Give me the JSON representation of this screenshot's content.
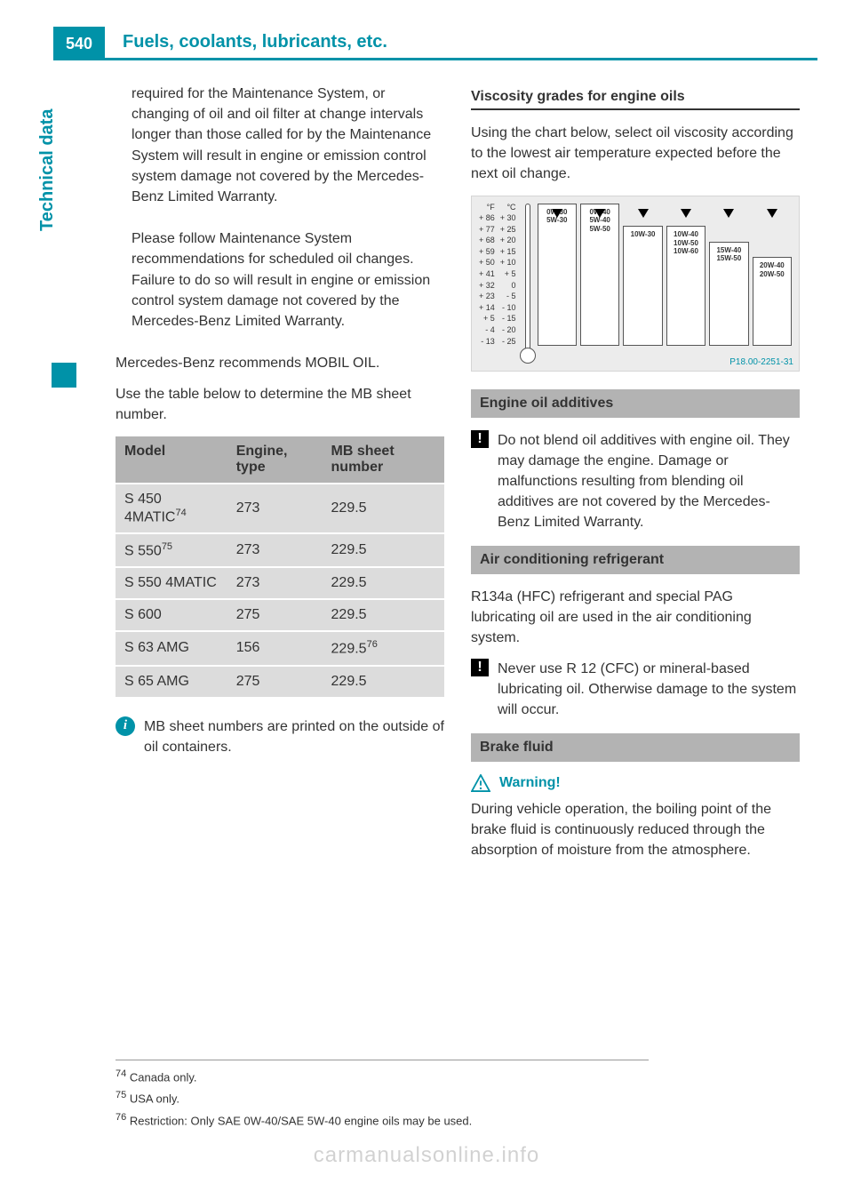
{
  "page_number": "540",
  "header_title": "Fuels, coolants, lubricants, etc.",
  "side_tab": "Technical data",
  "left": {
    "para1": "required for the Maintenance System, or changing of oil and oil filter at change intervals longer than those called for by the Maintenance System will result in engine or emission control system damage not covered by the Mercedes-Benz Limited Warranty.",
    "para2": "Please follow Maintenance System recommendations for scheduled oil changes. Failure to do so will result in engine or emission control system damage not covered by the Mercedes-Benz Limited Warranty.",
    "para3": "Mercedes-Benz recommends MOBIL OIL.",
    "para4": "Use the table below to determine the MB sheet number.",
    "table": {
      "headers": [
        "Model",
        "Engine, type",
        "MB sheet number"
      ],
      "rows": [
        {
          "model": "S 450 4MATIC",
          "sup": "74",
          "engine": "273",
          "sheet": "229.5",
          "sheet_sup": ""
        },
        {
          "model": "S 550",
          "sup": "75",
          "engine": "273",
          "sheet": "229.5",
          "sheet_sup": ""
        },
        {
          "model": "S 550 4MATIC",
          "sup": "",
          "engine": "273",
          "sheet": "229.5",
          "sheet_sup": ""
        },
        {
          "model": "S 600",
          "sup": "",
          "engine": "275",
          "sheet": "229.5",
          "sheet_sup": ""
        },
        {
          "model": "S 63 AMG",
          "sup": "",
          "engine": "156",
          "sheet": "229.5",
          "sheet_sup": "76"
        },
        {
          "model": "S 65 AMG",
          "sup": "",
          "engine": "275",
          "sheet": "229.5",
          "sheet_sup": ""
        }
      ]
    },
    "info_note": "MB sheet numbers are printed on the outside of oil containers."
  },
  "right": {
    "heading1": "Viscosity grades for engine oils",
    "para1": "Using the chart below, select oil viscosity according to the lowest air temperature expected before the next oil change.",
    "chart": {
      "code": "P18.00-2251-31",
      "f_scale": [
        "°F",
        "+ 86",
        "+ 77",
        "+ 68",
        "+ 59",
        "+ 50",
        "+ 41",
        "+ 32",
        "+ 23",
        "+ 14",
        "+  5",
        "-  4",
        "- 13"
      ],
      "c_scale": [
        "°C",
        "+ 30",
        "+ 25",
        "+ 20",
        "+ 15",
        "+ 10",
        "+  5",
        "   0",
        "-  5",
        "- 10",
        "- 15",
        "- 20",
        "- 25"
      ],
      "bars": [
        {
          "labels": [
            "0W-30",
            "5W-30"
          ],
          "height_pct": 100
        },
        {
          "labels": [
            "0W-40",
            "5W-40",
            "5W-50"
          ],
          "height_pct": 100
        },
        {
          "labels": [
            "10W-30"
          ],
          "height_pct": 84
        },
        {
          "labels": [
            "10W-40",
            "10W-50",
            "10W-60"
          ],
          "height_pct": 84
        },
        {
          "labels": [
            "15W-40",
            "15W-50"
          ],
          "height_pct": 73
        },
        {
          "labels": [
            "20W-40",
            "20W-50"
          ],
          "height_pct": 62
        }
      ]
    },
    "section_additives": "Engine oil additives",
    "additives_note": "Do not blend oil additives with engine oil. They may damage the engine. Damage or malfunctions resulting from blending oil additives are not covered by the Mercedes-Benz Limited Warranty.",
    "section_ac": "Air conditioning refrigerant",
    "ac_para": "R134a (HFC) refrigerant and special PAG lubricating oil are used in the air conditioning system.",
    "ac_note": "Never use R 12 (CFC) or mineral-based lubricating oil. Otherwise damage to the system will occur.",
    "section_brake": "Brake fluid",
    "warning_label": "Warning!",
    "brake_warning": "During vehicle operation, the boiling point of the brake fluid is continuously reduced through the absorption of moisture from the atmosphere."
  },
  "footnotes": {
    "f74": "Canada only.",
    "f75": "USA only.",
    "f76": "Restriction: Only SAE 0W-40/SAE 5W-40 engine oils may be used."
  },
  "watermark": "carmanualsonline.info"
}
